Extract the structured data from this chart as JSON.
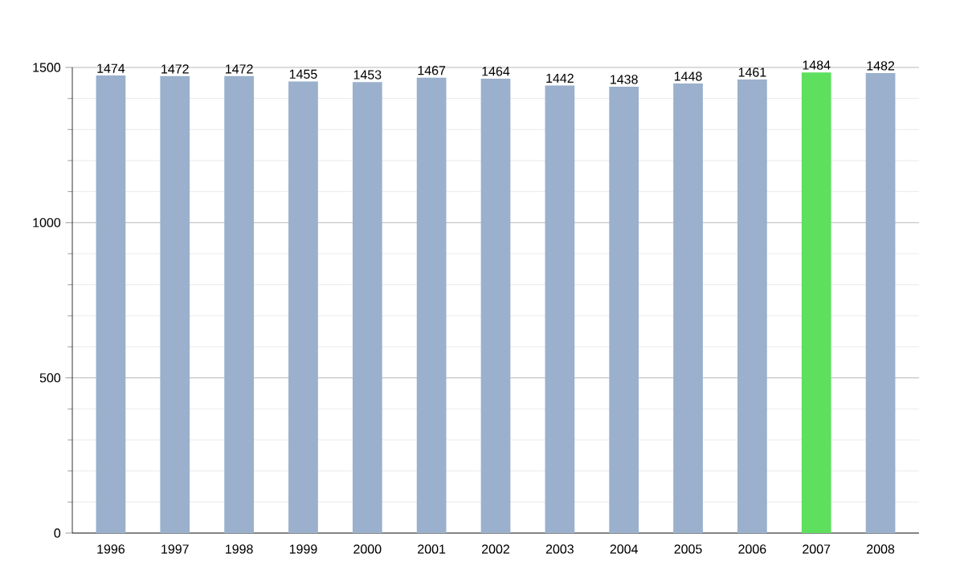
{
  "chart_data": {
    "type": "bar",
    "categories": [
      "1996",
      "1997",
      "1998",
      "1999",
      "2000",
      "2001",
      "2002",
      "2003",
      "2004",
      "2005",
      "2006",
      "2007",
      "2008"
    ],
    "values": [
      1474,
      1472,
      1472,
      1455,
      1453,
      1467,
      1464,
      1442,
      1438,
      1448,
      1461,
      1484,
      1482
    ],
    "colors": [
      "#9ab0cc",
      "#9ab0cc",
      "#9ab0cc",
      "#9ab0cc",
      "#9ab0cc",
      "#9ab0cc",
      "#9ab0cc",
      "#9ab0cc",
      "#9ab0cc",
      "#9ab0cc",
      "#9ab0cc",
      "#5ee05e",
      "#9ab0cc"
    ],
    "ylim": [
      0,
      1500
    ],
    "yticks": [
      0,
      500,
      1000,
      1500
    ],
    "grid": "y",
    "data_labels": true
  }
}
